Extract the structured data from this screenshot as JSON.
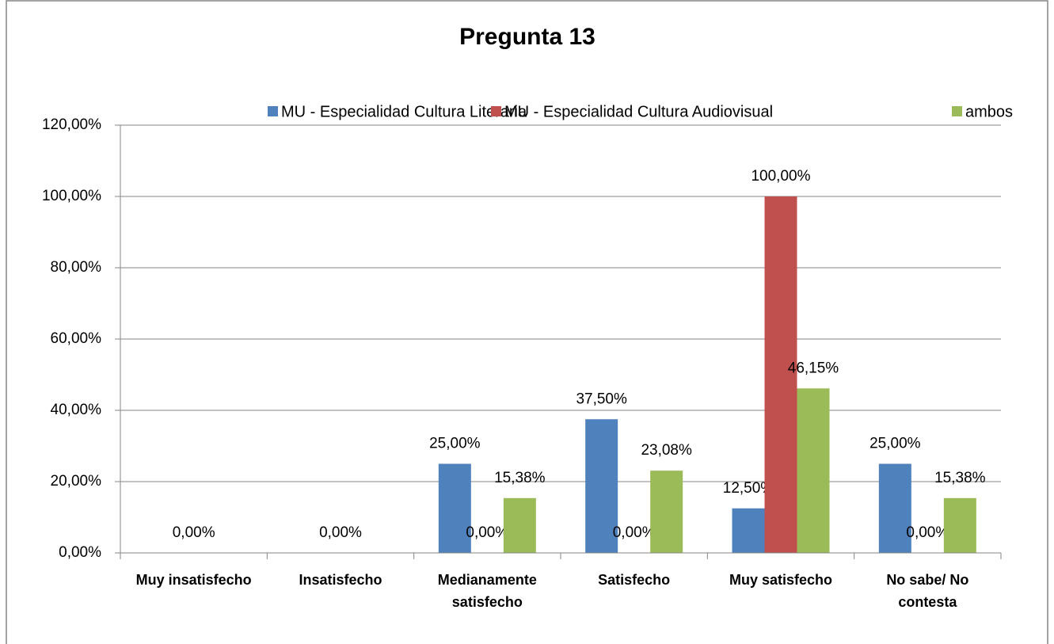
{
  "chart_data": {
    "type": "bar",
    "title": "Pregunta 13",
    "categories": [
      "Muy insatisfecho",
      "Insatisfecho",
      "Medianamente satisfecho",
      "Satisfecho",
      "Muy satisfecho",
      "No sabe/ No contesta"
    ],
    "series": [
      {
        "name": "MU - Especialidad Cultura Literaria",
        "color": "#4f81bd",
        "values": [
          null,
          null,
          25,
          37.5,
          12.5,
          25
        ],
        "value_labels": [
          null,
          null,
          "25,00%",
          "37,50%",
          "12,50%",
          "25,00%"
        ]
      },
      {
        "name": "MU - Especialidad Cultura Audiovisual",
        "color": "#c0504d",
        "values": [
          0,
          0,
          0,
          0,
          100,
          0
        ],
        "value_labels": [
          "0,00%",
          "0,00%",
          "0,00%",
          "0,00%",
          "100,00%",
          "0,00%"
        ]
      },
      {
        "name": "ambos",
        "color": "#9bbb59",
        "values": [
          null,
          null,
          15.38,
          23.08,
          46.15,
          15.38
        ],
        "value_labels": [
          null,
          null,
          "15,38%",
          "23,08%",
          "46,15%",
          "15,38%"
        ]
      }
    ],
    "ylim": [
      0,
      120
    ],
    "yticks": [
      {
        "value": 0,
        "label": "0,00%"
      },
      {
        "value": 20,
        "label": "20,00%"
      },
      {
        "value": 40,
        "label": "40,00%"
      },
      {
        "value": 60,
        "label": "60,00%"
      },
      {
        "value": 80,
        "label": "80,00%"
      },
      {
        "value": 100,
        "label": "100,00%"
      },
      {
        "value": 120,
        "label": "120,00%"
      }
    ],
    "grid": true,
    "legend": "top"
  }
}
